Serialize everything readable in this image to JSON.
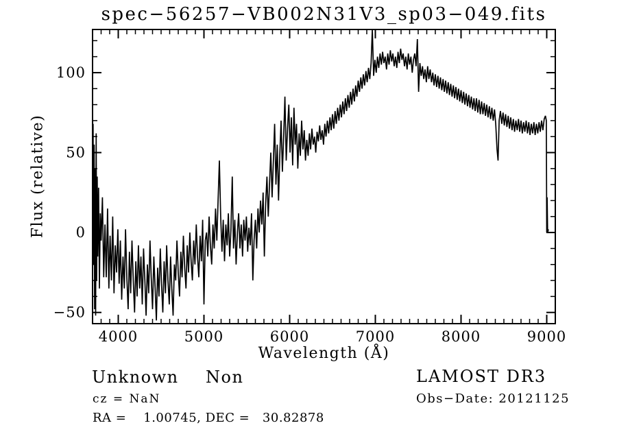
{
  "window": {
    "background": "#ffffff",
    "foreground": "#000000"
  },
  "header": {
    "title": "spec−56257−VB002N31V3_sp03−049.fits"
  },
  "annotations": {
    "class_label": "Unknown",
    "subclass_label": "Non",
    "cz_line": "cz = NaN",
    "radec_line": "RA =    1.00745, DEC =   30.82878",
    "survey_label": "LAMOST DR3",
    "obsdate_line": "Obs−Date: 20121125"
  },
  "chart_data": {
    "type": "line",
    "title": "spec−56257−VB002N31V3_sp03−049.fits",
    "xlabel": "Wavelength (Å)",
    "ylabel": "Flux (relative)",
    "xlim": [
      3700,
      9100
    ],
    "ylim": [
      -57,
      127
    ],
    "x_ticks": [
      {
        "v": 4000,
        "label": "4000"
      },
      {
        "v": 5000,
        "label": "5000"
      },
      {
        "v": 6000,
        "label": "6000"
      },
      {
        "v": 7000,
        "label": "7000"
      },
      {
        "v": 8000,
        "label": "8000"
      },
      {
        "v": 9000,
        "label": "9000"
      }
    ],
    "y_ticks": [
      {
        "v": -50,
        "label": "−50"
      },
      {
        "v": 0,
        "label": "0"
      },
      {
        "v": 50,
        "label": "50"
      },
      {
        "v": 100,
        "label": "100"
      }
    ],
    "x_minor_step": 100,
    "y_minor_step": 10,
    "x_major_step": 1000,
    "y_major_step": 50,
    "grid": false,
    "legend": null,
    "line_color": "#000000",
    "points": [
      [
        3700,
        25
      ],
      [
        3706,
        68
      ],
      [
        3712,
        -20
      ],
      [
        3718,
        55
      ],
      [
        3724,
        -48
      ],
      [
        3730,
        40
      ],
      [
        3736,
        -52
      ],
      [
        3742,
        62
      ],
      [
        3748,
        -30
      ],
      [
        3754,
        35
      ],
      [
        3760,
        -15
      ],
      [
        3770,
        28
      ],
      [
        3780,
        -35
      ],
      [
        3790,
        12
      ],
      [
        3800,
        -5
      ],
      [
        3815,
        22
      ],
      [
        3830,
        -28
      ],
      [
        3845,
        5
      ],
      [
        3860,
        -28
      ],
      [
        3875,
        15
      ],
      [
        3890,
        -35
      ],
      [
        3905,
        -2
      ],
      [
        3920,
        -30
      ],
      [
        3935,
        10
      ],
      [
        3950,
        -38
      ],
      [
        3965,
        -8
      ],
      [
        3980,
        -25
      ],
      [
        3995,
        2
      ],
      [
        4010,
        -32
      ],
      [
        4025,
        -5
      ],
      [
        4040,
        -42
      ],
      [
        4055,
        -15
      ],
      [
        4070,
        -35
      ],
      [
        4085,
        2
      ],
      [
        4100,
        -28
      ],
      [
        4115,
        -48
      ],
      [
        4130,
        -12
      ],
      [
        4145,
        -38
      ],
      [
        4160,
        -5
      ],
      [
        4175,
        -30
      ],
      [
        4190,
        -50
      ],
      [
        4205,
        -18
      ],
      [
        4220,
        -40
      ],
      [
        4235,
        -8
      ],
      [
        4250,
        -35
      ],
      [
        4265,
        -15
      ],
      [
        4280,
        -45
      ],
      [
        4295,
        -10
      ],
      [
        4310,
        -30
      ],
      [
        4325,
        -52
      ],
      [
        4340,
        -20
      ],
      [
        4355,
        -38
      ],
      [
        4370,
        -5
      ],
      [
        4385,
        -28
      ],
      [
        4400,
        -48
      ],
      [
        4415,
        -15
      ],
      [
        4430,
        -35
      ],
      [
        4445,
        -55
      ],
      [
        4460,
        -22
      ],
      [
        4475,
        -40
      ],
      [
        4490,
        -10
      ],
      [
        4505,
        -32
      ],
      [
        4520,
        -50
      ],
      [
        4535,
        -18
      ],
      [
        4550,
        -38
      ],
      [
        4565,
        -8
      ],
      [
        4580,
        -30
      ],
      [
        4595,
        -45
      ],
      [
        4610,
        -15
      ],
      [
        4625,
        -35
      ],
      [
        4640,
        -52
      ],
      [
        4655,
        -20
      ],
      [
        4670,
        -30
      ],
      [
        4685,
        -5
      ],
      [
        4700,
        -25
      ],
      [
        4715,
        -40
      ],
      [
        4730,
        -12
      ],
      [
        4745,
        -28
      ],
      [
        4760,
        -2
      ],
      [
        4775,
        -22
      ],
      [
        4790,
        -35
      ],
      [
        4805,
        -8
      ],
      [
        4820,
        -25
      ],
      [
        4835,
        0
      ],
      [
        4850,
        -18
      ],
      [
        4865,
        -30
      ],
      [
        4880,
        -5
      ],
      [
        4895,
        -20
      ],
      [
        4910,
        5
      ],
      [
        4925,
        -15
      ],
      [
        4940,
        -28
      ],
      [
        4955,
        -2
      ],
      [
        4970,
        -18
      ],
      [
        4985,
        8
      ],
      [
        5000,
        -45
      ],
      [
        5015,
        -5
      ],
      [
        5030,
        0
      ],
      [
        5045,
        -15
      ],
      [
        5060,
        10
      ],
      [
        5075,
        -8
      ],
      [
        5090,
        -20
      ],
      [
        5105,
        5
      ],
      [
        5120,
        -10
      ],
      [
        5135,
        15
      ],
      [
        5150,
        -5
      ],
      [
        5165,
        20
      ],
      [
        5180,
        45
      ],
      [
        5195,
        10
      ],
      [
        5210,
        -12
      ],
      [
        5225,
        8
      ],
      [
        5240,
        -18
      ],
      [
        5255,
        5
      ],
      [
        5270,
        -8
      ],
      [
        5285,
        12
      ],
      [
        5300,
        -15
      ],
      [
        5315,
        2
      ],
      [
        5330,
        35
      ],
      [
        5345,
        -10
      ],
      [
        5360,
        8
      ],
      [
        5375,
        -20
      ],
      [
        5390,
        0
      ],
      [
        5405,
        12
      ],
      [
        5420,
        -10
      ],
      [
        5435,
        5
      ],
      [
        5450,
        -15
      ],
      [
        5465,
        8
      ],
      [
        5480,
        -5
      ],
      [
        5495,
        10
      ],
      [
        5510,
        -12
      ],
      [
        5525,
        3
      ],
      [
        5540,
        -8
      ],
      [
        5555,
        12
      ],
      [
        5570,
        -30
      ],
      [
        5585,
        -5
      ],
      [
        5600,
        8
      ],
      [
        5615,
        -10
      ],
      [
        5630,
        15
      ],
      [
        5645,
        0
      ],
      [
        5660,
        20
      ],
      [
        5675,
        5
      ],
      [
        5690,
        25
      ],
      [
        5705,
        -15
      ],
      [
        5720,
        18
      ],
      [
        5735,
        35
      ],
      [
        5750,
        10
      ],
      [
        5765,
        30
      ],
      [
        5780,
        50
      ],
      [
        5795,
        22
      ],
      [
        5810,
        45
      ],
      [
        5825,
        68
      ],
      [
        5840,
        30
      ],
      [
        5855,
        55
      ],
      [
        5870,
        20
      ],
      [
        5885,
        48
      ],
      [
        5900,
        70
      ],
      [
        5915,
        38
      ],
      [
        5930,
        60
      ],
      [
        5945,
        85
      ],
      [
        5960,
        45
      ],
      [
        5975,
        65
      ],
      [
        5990,
        80
      ],
      [
        6005,
        50
      ],
      [
        6020,
        72
      ],
      [
        6035,
        42
      ],
      [
        6050,
        78
      ],
      [
        6065,
        55
      ],
      [
        6080,
        68
      ],
      [
        6095,
        40
      ],
      [
        6110,
        62
      ],
      [
        6125,
        48
      ],
      [
        6140,
        70
      ],
      [
        6155,
        52
      ],
      [
        6170,
        64
      ],
      [
        6185,
        45
      ],
      [
        6200,
        58
      ],
      [
        6215,
        48
      ],
      [
        6230,
        62
      ],
      [
        6245,
        52
      ],
      [
        6260,
        65
      ],
      [
        6275,
        55
      ],
      [
        6290,
        60
      ],
      [
        6305,
        50
      ],
      [
        6320,
        63
      ],
      [
        6335,
        57
      ],
      [
        6350,
        67
      ],
      [
        6365,
        58
      ],
      [
        6380,
        64
      ],
      [
        6395,
        55
      ],
      [
        6410,
        68
      ],
      [
        6425,
        60
      ],
      [
        6440,
        70
      ],
      [
        6455,
        62
      ],
      [
        6470,
        72
      ],
      [
        6485,
        64
      ],
      [
        6500,
        74
      ],
      [
        6515,
        65
      ],
      [
        6530,
        76
      ],
      [
        6545,
        68
      ],
      [
        6560,
        78
      ],
      [
        6575,
        70
      ],
      [
        6590,
        80
      ],
      [
        6605,
        72
      ],
      [
        6620,
        82
      ],
      [
        6635,
        74
      ],
      [
        6650,
        84
      ],
      [
        6665,
        76
      ],
      [
        6680,
        86
      ],
      [
        6695,
        78
      ],
      [
        6710,
        88
      ],
      [
        6725,
        80
      ],
      [
        6740,
        90
      ],
      [
        6755,
        82
      ],
      [
        6770,
        92
      ],
      [
        6785,
        85
      ],
      [
        6800,
        95
      ],
      [
        6815,
        88
      ],
      [
        6830,
        97
      ],
      [
        6845,
        90
      ],
      [
        6860,
        99
      ],
      [
        6875,
        92
      ],
      [
        6890,
        101
      ],
      [
        6905,
        94
      ],
      [
        6920,
        103
      ],
      [
        6935,
        96
      ],
      [
        6950,
        106
      ],
      [
        6965,
        127
      ],
      [
        6980,
        98
      ],
      [
        6995,
        108
      ],
      [
        7010,
        100
      ],
      [
        7025,
        110
      ],
      [
        7040,
        103
      ],
      [
        7055,
        112
      ],
      [
        7070,
        105
      ],
      [
        7085,
        113
      ],
      [
        7100,
        106
      ],
      [
        7115,
        110
      ],
      [
        7130,
        102
      ],
      [
        7145,
        112
      ],
      [
        7160,
        105
      ],
      [
        7175,
        114
      ],
      [
        7190,
        107
      ],
      [
        7205,
        112
      ],
      [
        7220,
        104
      ],
      [
        7235,
        110
      ],
      [
        7250,
        103
      ],
      [
        7265,
        113
      ],
      [
        7280,
        106
      ],
      [
        7295,
        115
      ],
      [
        7310,
        108
      ],
      [
        7325,
        112
      ],
      [
        7340,
        104
      ],
      [
        7355,
        110
      ],
      [
        7370,
        102
      ],
      [
        7385,
        112
      ],
      [
        7400,
        105
      ],
      [
        7415,
        110
      ],
      [
        7430,
        100
      ],
      [
        7445,
        108
      ],
      [
        7460,
        112
      ],
      [
        7475,
        104
      ],
      [
        7490,
        121
      ],
      [
        7505,
        88
      ],
      [
        7520,
        106
      ],
      [
        7535,
        98
      ],
      [
        7550,
        104
      ],
      [
        7565,
        96
      ],
      [
        7580,
        102
      ],
      [
        7595,
        94
      ],
      [
        7610,
        104
      ],
      [
        7625,
        96
      ],
      [
        7640,
        102
      ],
      [
        7655,
        94
      ],
      [
        7670,
        100
      ],
      [
        7685,
        92
      ],
      [
        7700,
        99
      ],
      [
        7715,
        91
      ],
      [
        7730,
        98
      ],
      [
        7745,
        90
      ],
      [
        7760,
        97
      ],
      [
        7775,
        89
      ],
      [
        7790,
        96
      ],
      [
        7805,
        88
      ],
      [
        7820,
        95
      ],
      [
        7835,
        87
      ],
      [
        7850,
        94
      ],
      [
        7865,
        86
      ],
      [
        7880,
        93
      ],
      [
        7895,
        85
      ],
      [
        7910,
        92
      ],
      [
        7925,
        84
      ],
      [
        7940,
        91
      ],
      [
        7955,
        83
      ],
      [
        7970,
        90
      ],
      [
        7985,
        82
      ],
      [
        8000,
        89
      ],
      [
        8015,
        81
      ],
      [
        8030,
        88
      ],
      [
        8045,
        80
      ],
      [
        8060,
        87
      ],
      [
        8075,
        79
      ],
      [
        8090,
        86
      ],
      [
        8105,
        78
      ],
      [
        8120,
        85
      ],
      [
        8135,
        77
      ],
      [
        8150,
        84
      ],
      [
        8165,
        76
      ],
      [
        8180,
        84
      ],
      [
        8195,
        75
      ],
      [
        8210,
        83
      ],
      [
        8225,
        74
      ],
      [
        8240,
        82
      ],
      [
        8255,
        74
      ],
      [
        8270,
        81
      ],
      [
        8285,
        73
      ],
      [
        8300,
        80
      ],
      [
        8315,
        72
      ],
      [
        8330,
        79
      ],
      [
        8345,
        71
      ],
      [
        8360,
        78
      ],
      [
        8375,
        70
      ],
      [
        8390,
        77
      ],
      [
        8405,
        68
      ],
      [
        8420,
        52
      ],
      [
        8432,
        45
      ],
      [
        8445,
        70
      ],
      [
        8460,
        76
      ],
      [
        8475,
        68
      ],
      [
        8490,
        75
      ],
      [
        8505,
        67
      ],
      [
        8520,
        74
      ],
      [
        8535,
        66
      ],
      [
        8550,
        73
      ],
      [
        8565,
        65
      ],
      [
        8580,
        72
      ],
      [
        8595,
        64
      ],
      [
        8610,
        71
      ],
      [
        8625,
        63
      ],
      [
        8640,
        70
      ],
      [
        8655,
        64
      ],
      [
        8670,
        71
      ],
      [
        8685,
        63
      ],
      [
        8700,
        70
      ],
      [
        8715,
        62
      ],
      [
        8730,
        69
      ],
      [
        8745,
        63
      ],
      [
        8760,
        70
      ],
      [
        8775,
        62
      ],
      [
        8790,
        69
      ],
      [
        8805,
        61
      ],
      [
        8820,
        68
      ],
      [
        8835,
        62
      ],
      [
        8850,
        69
      ],
      [
        8865,
        61
      ],
      [
        8880,
        68
      ],
      [
        8895,
        62
      ],
      [
        8910,
        69
      ],
      [
        8925,
        63
      ],
      [
        8940,
        70
      ],
      [
        8955,
        64
      ],
      [
        8970,
        71
      ],
      [
        8985,
        73
      ],
      [
        8995,
        70
      ],
      [
        9000,
        0
      ],
      [
        9005,
        22
      ],
      [
        9010,
        0
      ],
      [
        9020,
        2
      ]
    ]
  }
}
